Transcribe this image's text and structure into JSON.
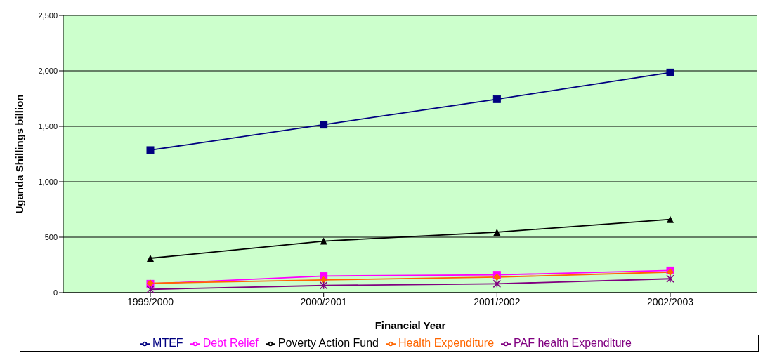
{
  "chart_data": {
    "type": "line",
    "xlabel": "Financial Year",
    "ylabel": "Uganda Shillings billion",
    "categories": [
      "1999/2000",
      "2000/2001",
      "2001/2002",
      "2002/2003"
    ],
    "series": [
      {
        "name": "MTEF",
        "color": "#000080",
        "marker": "square",
        "values": [
          1285,
          1515,
          1745,
          1985
        ]
      },
      {
        "name": "Debt Relief",
        "color": "#ff00ff",
        "marker": "square",
        "values": [
          80,
          150,
          160,
          200
        ]
      },
      {
        "name": "Poverty Action Fund",
        "color": "#000000",
        "marker": "triangle",
        "values": [
          310,
          465,
          545,
          660
        ]
      },
      {
        "name": "Health Expenditure",
        "color": "#ff6600",
        "marker": "diamond",
        "values": [
          85,
          115,
          140,
          185
        ]
      },
      {
        "name": "PAF health Expenditure",
        "color": "#800080",
        "marker": "cross",
        "values": [
          30,
          65,
          80,
          125
        ]
      }
    ],
    "ylim": [
      0,
      2500
    ],
    "yticks": [
      {
        "value": 0,
        "label": "0"
      },
      {
        "value": 500,
        "label": "500"
      },
      {
        "value": 1000,
        "label": "1,000"
      },
      {
        "value": 1500,
        "label": "1,500"
      },
      {
        "value": 2000,
        "label": "2,000"
      },
      {
        "value": 2500,
        "label": "2,500"
      }
    ],
    "grid": "y",
    "legend": "bottom",
    "line_style": "solid"
  }
}
